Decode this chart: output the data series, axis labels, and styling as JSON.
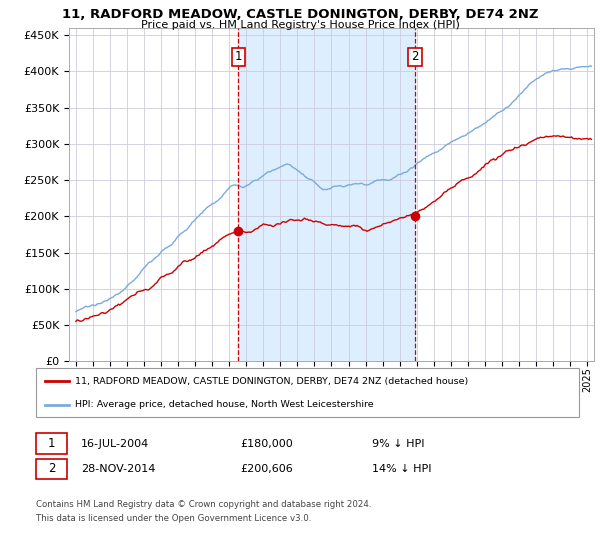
{
  "title": "11, RADFORD MEADOW, CASTLE DONINGTON, DERBY, DE74 2NZ",
  "subtitle": "Price paid vs. HM Land Registry's House Price Index (HPI)",
  "legend_line1": "11, RADFORD MEADOW, CASTLE DONINGTON, DERBY, DE74 2NZ (detached house)",
  "legend_line2": "HPI: Average price, detached house, North West Leicestershire",
  "sale1_date": "16-JUL-2004",
  "sale1_price": 180000,
  "sale1_hpi": "9% ↓ HPI",
  "sale2_date": "28-NOV-2014",
  "sale2_price": 200606,
  "sale2_hpi": "14% ↓ HPI",
  "footnote1": "Contains HM Land Registry data © Crown copyright and database right 2024.",
  "footnote2": "This data is licensed under the Open Government Licence v3.0.",
  "ylim": [
    0,
    460000
  ],
  "yticks": [
    0,
    50000,
    100000,
    150000,
    200000,
    250000,
    300000,
    350000,
    400000,
    450000
  ],
  "hpi_color": "#7aabdc",
  "price_color": "#cc0000",
  "bg_color": "#ddeeff",
  "grid_color": "#ccccdd",
  "sale1_x": 2004.54,
  "sale2_x": 2014.91,
  "xlim_left": 1994.6,
  "xlim_right": 2025.4
}
